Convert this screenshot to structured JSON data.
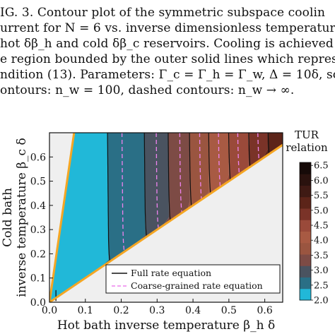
{
  "caption": {
    "lines": [
      "IG. 3.  Contour plot of the symmetric subspace coolin",
      "urrent for N = 6 vs.  inverse dimensionless temperatur",
      " hot δβ_h and cold δβ_c reservoirs.  Cooling is achieved",
      "e region bounded by the outer solid lines which represe",
      "ndition (13). Parameters: Γ_c = Γ_h = Γ_w, Δ = 10δ, soli",
      "ontours: n_w = 100, dashed contours: n_w → ∞."
    ],
    "ref_text": "(13)"
  },
  "chart_data": {
    "type": "contour",
    "xlabel": "Hot bath inverse temperature β_h δ",
    "ylabel_line1": "Cold bath",
    "ylabel_line2": "inverse temperature β_c δ",
    "xlim": [
      0.0,
      0.65
    ],
    "ylim": [
      0.0,
      0.7
    ],
    "xticks": [
      "0.0",
      "0.1",
      "0.2",
      "0.3",
      "0.4",
      "0.5",
      "0.6"
    ],
    "yticks": [
      "0.0",
      "0.1",
      "0.2",
      "0.3",
      "0.4",
      "0.5",
      "0.6"
    ],
    "colorbar": {
      "title_line1": "TUR",
      "title_line2": "relation",
      "range": [
        2.0,
        6.6
      ],
      "ticks": [
        "2.0",
        "2.5",
        "3.0",
        "3.5",
        "4.0",
        "4.5",
        "5.0",
        "5.5",
        "6.0",
        "6.5"
      ],
      "colors": [
        "#21b8d8",
        "#2a6f86",
        "#4a5360",
        "#7d4b45",
        "#9a5540",
        "#a85a43",
        "#9a4a3a",
        "#7a3328",
        "#5c2419",
        "#3f1a14",
        "#2a120e",
        "#160a08"
      ]
    },
    "region_boundaries": {
      "upper_line_slope": 10.2,
      "diagonal_slope": 1.0
    },
    "solid_contours_x_at_top": [
      0.165,
      0.267,
      0.333,
      0.392,
      0.445,
      0.5,
      0.555,
      0.608
    ],
    "dashed_contours_x_at_top": [
      0.205,
      0.3,
      0.365,
      0.42,
      0.472,
      0.525,
      0.58
    ],
    "legend": {
      "solid": "Full rate equation",
      "dashed": "Coarse-grained rate equation"
    },
    "colors": {
      "background": "#efefef",
      "boundary": "#f5a623",
      "cool_region": "#21b8d8",
      "dashed": "#ee82ee",
      "contour": "#111111"
    }
  }
}
